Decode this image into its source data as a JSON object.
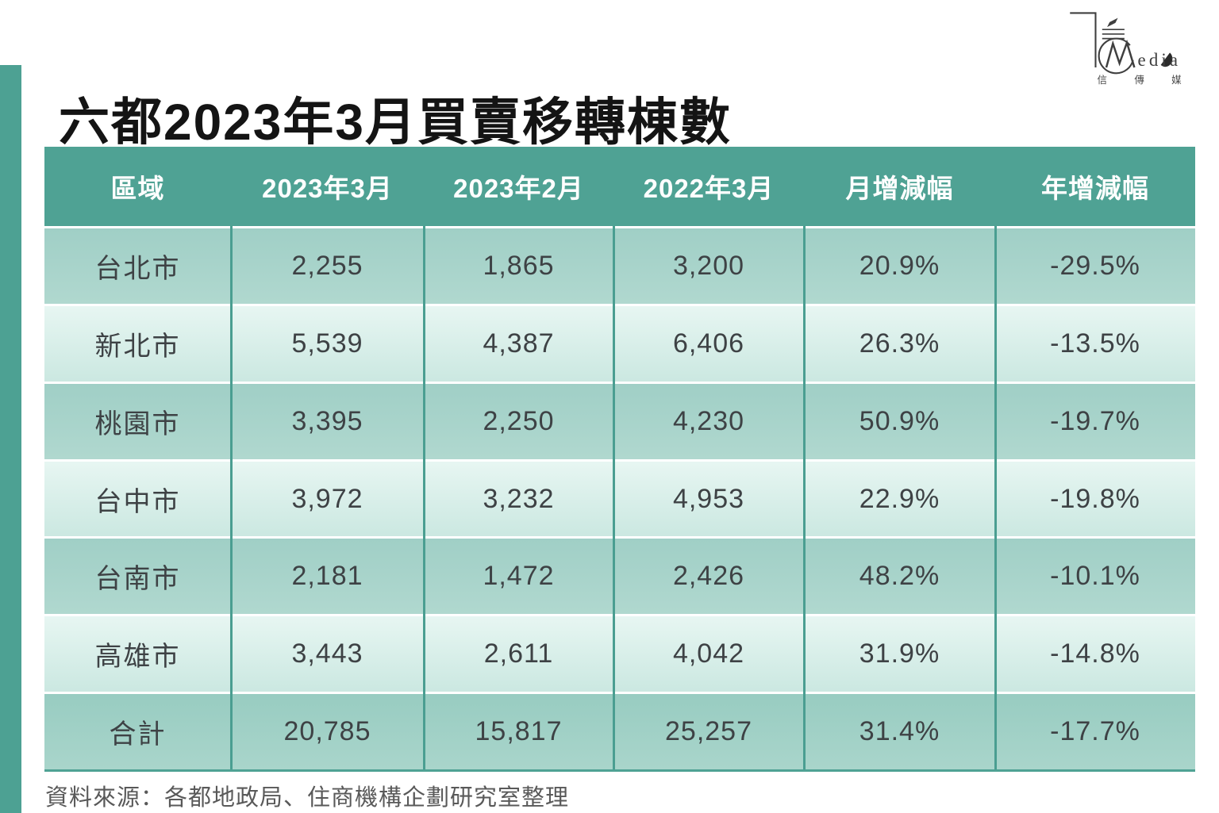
{
  "page": {
    "title": "六都2023年3月買賣移轉棟數",
    "source_note": "資料來源：各都地政局、住商機構企劃研究室整理"
  },
  "logo": {
    "latin_text": "edia",
    "cjk_chars": [
      "信",
      "傳",
      "媒"
    ]
  },
  "colors": {
    "header_bg": "#4FA294",
    "accent_bar": "#4DA193",
    "divider": "#4A9E91",
    "row_shade_a": "#A8D4CB",
    "row_shade_b": "#D9EFEA",
    "header_text": "#FFFFFF",
    "cell_text": "#3E4245",
    "source_text": "#595959"
  },
  "chart_data": {
    "type": "table",
    "title": "六都2023年3月買賣移轉棟數",
    "columns": [
      "區域",
      "2023年3月",
      "2023年2月",
      "2022年3月",
      "月增減幅",
      "年增減幅"
    ],
    "rows": [
      [
        "台北市",
        "2,255",
        "1,865",
        "3,200",
        "20.9%",
        "-29.5%"
      ],
      [
        "新北市",
        "5,539",
        "4,387",
        "6,406",
        "26.3%",
        "-13.5%"
      ],
      [
        "桃園市",
        "3,395",
        "2,250",
        "4,230",
        "50.9%",
        "-19.7%"
      ],
      [
        "台中市",
        "3,972",
        "3,232",
        "4,953",
        "22.9%",
        "-19.8%"
      ],
      [
        "台南市",
        "2,181",
        "1,472",
        "2,426",
        "48.2%",
        "-10.1%"
      ],
      [
        "高雄市",
        "3,443",
        "2,611",
        "4,042",
        "31.9%",
        "-14.8%"
      ],
      [
        "合計",
        "20,785",
        "15,817",
        "25,257",
        "31.4%",
        "-17.7%"
      ]
    ],
    "notes": "source note shown below table",
    "layout": {
      "header_position": "top",
      "grid": "teal column dividers, white row gaps"
    }
  }
}
